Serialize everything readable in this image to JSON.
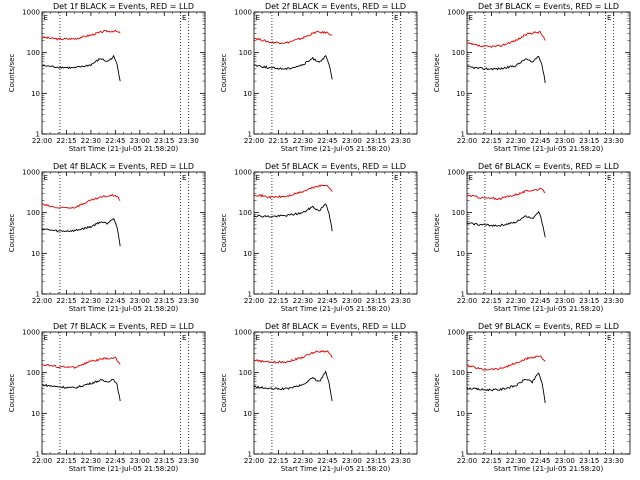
{
  "colors": {
    "events": "#000000",
    "lld": "#e00000",
    "background": "#ffffff"
  },
  "chart_data": [
    {
      "type": "line",
      "title": "Det 1f BLACK = Events, RED = LLD",
      "xlabel": "Start Time (21-Jul-05 21:58:20)",
      "ylabel": "Counts/sec",
      "yscale": "log",
      "ylim": [
        1,
        1000
      ],
      "xlim": [
        "22:00",
        "23:40"
      ],
      "x_ticks": [
        "22:00",
        "22:15",
        "22:30",
        "22:45",
        "23:00",
        "23:15",
        "23:30"
      ],
      "y_ticks": [
        "1",
        "10",
        "100",
        "1000"
      ],
      "vlines": [
        "22:11",
        "23:25",
        "23:30"
      ],
      "corner_mark": "E",
      "series": [
        {
          "color": "red",
          "x": [
            "22:00",
            "22:10",
            "22:20",
            "22:30",
            "22:38",
            "22:45",
            "22:48"
          ],
          "values": [
            240,
            215,
            220,
            270,
            335,
            340,
            300
          ]
        },
        {
          "color": "black",
          "x": [
            "22:00",
            "22:10",
            "22:20",
            "22:30",
            "22:36",
            "22:40",
            "22:44",
            "22:46",
            "22:48"
          ],
          "values": [
            48,
            44,
            42,
            50,
            72,
            60,
            80,
            52,
            20
          ]
        }
      ]
    },
    {
      "type": "line",
      "title": "Det 2f BLACK = Events, RED = LLD",
      "xlabel": "Start Time (21-Jul-05 21:58:20)",
      "ylabel": "Counts/sec",
      "yscale": "log",
      "ylim": [
        1,
        1000
      ],
      "xlim": [
        "22:00",
        "23:40"
      ],
      "x_ticks": [
        "22:00",
        "22:15",
        "22:30",
        "22:45",
        "23:00",
        "23:15",
        "23:30"
      ],
      "y_ticks": [
        "1",
        "10",
        "100",
        "1000"
      ],
      "vlines": [
        "22:11",
        "23:25",
        "23:30"
      ],
      "corner_mark": "E",
      "series": [
        {
          "color": "red",
          "x": [
            "22:00",
            "22:10",
            "22:20",
            "22:30",
            "22:38",
            "22:45",
            "22:48"
          ],
          "values": [
            230,
            180,
            175,
            230,
            320,
            310,
            270
          ]
        },
        {
          "color": "black",
          "x": [
            "22:00",
            "22:10",
            "22:20",
            "22:30",
            "22:36",
            "22:40",
            "22:44",
            "22:46",
            "22:48"
          ],
          "values": [
            50,
            42,
            40,
            50,
            72,
            60,
            80,
            52,
            22
          ]
        }
      ]
    },
    {
      "type": "line",
      "title": "Det 3f BLACK = Events, RED = LLD",
      "xlabel": "Start Time (21-Jul-05 21:58:20)",
      "ylabel": "Counts/sec",
      "yscale": "log",
      "ylim": [
        1,
        1000
      ],
      "xlim": [
        "22:00",
        "23:40"
      ],
      "x_ticks": [
        "22:00",
        "22:15",
        "22:30",
        "22:45",
        "23:00",
        "23:15",
        "23:30"
      ],
      "y_ticks": [
        "1",
        "10",
        "100",
        "1000"
      ],
      "vlines": [
        "22:11",
        "23:25",
        "23:30"
      ],
      "corner_mark": "E",
      "series": [
        {
          "color": "red",
          "x": [
            "22:00",
            "22:10",
            "22:20",
            "22:30",
            "22:38",
            "22:45",
            "22:48"
          ],
          "values": [
            170,
            140,
            145,
            200,
            300,
            320,
            200
          ]
        },
        {
          "color": "black",
          "x": [
            "22:00",
            "22:10",
            "22:20",
            "22:30",
            "22:36",
            "22:40",
            "22:44",
            "22:46",
            "22:48"
          ],
          "values": [
            45,
            40,
            40,
            48,
            70,
            58,
            85,
            50,
            18
          ]
        }
      ]
    },
    {
      "type": "line",
      "title": "Det 4f BLACK = Events, RED = LLD",
      "xlabel": "Start Time (21-Jul-05 21:58:20)",
      "ylabel": "Counts/sec",
      "yscale": "log",
      "ylim": [
        1,
        1000
      ],
      "xlim": [
        "22:00",
        "23:40"
      ],
      "x_ticks": [
        "22:00",
        "22:15",
        "22:30",
        "22:45",
        "23:00",
        "23:15",
        "23:30"
      ],
      "y_ticks": [
        "1",
        "10",
        "100",
        "1000"
      ],
      "vlines": [
        "22:11",
        "23:25",
        "23:30"
      ],
      "corner_mark": "E",
      "series": [
        {
          "color": "red",
          "x": [
            "22:00",
            "22:10",
            "22:20",
            "22:30",
            "22:38",
            "22:45",
            "22:48"
          ],
          "values": [
            160,
            130,
            135,
            200,
            250,
            270,
            200
          ]
        },
        {
          "color": "black",
          "x": [
            "22:00",
            "22:10",
            "22:20",
            "22:30",
            "22:36",
            "22:40",
            "22:44",
            "22:46",
            "22:48"
          ],
          "values": [
            40,
            35,
            36,
            45,
            60,
            55,
            75,
            45,
            15
          ]
        }
      ]
    },
    {
      "type": "line",
      "title": "Det 5f BLACK = Events, RED = LLD",
      "xlabel": "Start Time (21-Jul-05 21:58:20)",
      "ylabel": "Counts/sec",
      "yscale": "log",
      "ylim": [
        1,
        1000
      ],
      "xlim": [
        "22:00",
        "23:40"
      ],
      "x_ticks": [
        "22:00",
        "22:15",
        "22:30",
        "22:45",
        "23:00",
        "23:15",
        "23:30"
      ],
      "y_ticks": [
        "1",
        "10",
        "100",
        "1000"
      ],
      "vlines": [
        "22:11",
        "23:25",
        "23:30"
      ],
      "corner_mark": "E",
      "series": [
        {
          "color": "red",
          "x": [
            "22:00",
            "22:10",
            "22:20",
            "22:30",
            "22:38",
            "22:45",
            "22:48"
          ],
          "values": [
            280,
            240,
            250,
            330,
            440,
            480,
            330
          ]
        },
        {
          "color": "black",
          "x": [
            "22:00",
            "22:10",
            "22:20",
            "22:30",
            "22:36",
            "22:40",
            "22:44",
            "22:46",
            "22:48"
          ],
          "values": [
            85,
            80,
            85,
            100,
            140,
            110,
            170,
            100,
            35
          ]
        }
      ]
    },
    {
      "type": "line",
      "title": "Det 6f BLACK = Events, RED = LLD",
      "xlabel": "Start Time (21-Jul-05 21:58:20)",
      "ylabel": "Counts/sec",
      "yscale": "log",
      "ylim": [
        1,
        1000
      ],
      "xlim": [
        "22:00",
        "23:40"
      ],
      "x_ticks": [
        "22:00",
        "22:15",
        "22:30",
        "22:45",
        "23:00",
        "23:15",
        "23:30"
      ],
      "y_ticks": [
        "1",
        "10",
        "100",
        "1000"
      ],
      "vlines": [
        "22:11",
        "23:25",
        "23:30"
      ],
      "corner_mark": "E",
      "series": [
        {
          "color": "red",
          "x": [
            "22:00",
            "22:10",
            "22:20",
            "22:30",
            "22:38",
            "22:45",
            "22:48"
          ],
          "values": [
            270,
            230,
            220,
            280,
            350,
            380,
            320
          ]
        },
        {
          "color": "black",
          "x": [
            "22:00",
            "22:10",
            "22:20",
            "22:30",
            "22:36",
            "22:40",
            "22:44",
            "22:46",
            "22:48"
          ],
          "values": [
            55,
            50,
            48,
            58,
            85,
            70,
            110,
            60,
            25
          ]
        }
      ]
    },
    {
      "type": "line",
      "title": "Det 7f BLACK = Events, RED = LLD",
      "xlabel": "Start Time (21-Jul-05 21:58:20)",
      "ylabel": "Counts/sec",
      "yscale": "log",
      "ylim": [
        1,
        1000
      ],
      "xlim": [
        "22:00",
        "23:40"
      ],
      "x_ticks": [
        "22:00",
        "22:15",
        "22:30",
        "22:45",
        "23:00",
        "23:15",
        "23:30"
      ],
      "y_ticks": [
        "1",
        "10",
        "100",
        "1000"
      ],
      "vlines": [
        "22:11",
        "23:25",
        "23:30"
      ],
      "corner_mark": "E",
      "series": [
        {
          "color": "red",
          "x": [
            "22:00",
            "22:10",
            "22:20",
            "22:30",
            "22:38",
            "22:45",
            "22:48"
          ],
          "values": [
            160,
            140,
            135,
            190,
            220,
            230,
            160
          ]
        },
        {
          "color": "black",
          "x": [
            "22:00",
            "22:10",
            "22:20",
            "22:30",
            "22:36",
            "22:40",
            "22:44",
            "22:46",
            "22:48"
          ],
          "values": [
            50,
            45,
            42,
            55,
            65,
            60,
            70,
            50,
            20
          ]
        }
      ]
    },
    {
      "type": "line",
      "title": "Det 8f BLACK = Events, RED = LLD",
      "xlabel": "Start Time (21-Jul-05 21:58:20)",
      "ylabel": "Counts/sec",
      "yscale": "log",
      "ylim": [
        1,
        1000
      ],
      "xlim": [
        "22:00",
        "23:40"
      ],
      "x_ticks": [
        "22:00",
        "22:15",
        "22:30",
        "22:45",
        "23:00",
        "23:15",
        "23:30"
      ],
      "y_ticks": [
        "1",
        "10",
        "100",
        "1000"
      ],
      "vlines": [
        "22:11",
        "23:25",
        "23:30"
      ],
      "corner_mark": "E",
      "series": [
        {
          "color": "red",
          "x": [
            "22:00",
            "22:10",
            "22:20",
            "22:30",
            "22:38",
            "22:45",
            "22:48"
          ],
          "values": [
            200,
            180,
            185,
            240,
            330,
            340,
            230
          ]
        },
        {
          "color": "black",
          "x": [
            "22:00",
            "22:10",
            "22:20",
            "22:30",
            "22:36",
            "22:40",
            "22:44",
            "22:46",
            "22:48"
          ],
          "values": [
            45,
            40,
            40,
            50,
            75,
            60,
            110,
            55,
            20
          ]
        }
      ]
    },
    {
      "type": "line",
      "title": "Det 9f BLACK = Events, RED = LLD",
      "xlabel": "Start Time (21-Jul-05 21:58:20)",
      "ylabel": "Counts/sec",
      "yscale": "log",
      "ylim": [
        1,
        1000
      ],
      "xlim": [
        "22:00",
        "23:40"
      ],
      "x_ticks": [
        "22:00",
        "22:15",
        "22:30",
        "22:45",
        "23:00",
        "23:15",
        "23:30"
      ],
      "y_ticks": [
        "1",
        "10",
        "100",
        "1000"
      ],
      "vlines": [
        "22:11",
        "23:25",
        "23:30"
      ],
      "corner_mark": "E",
      "series": [
        {
          "color": "red",
          "x": [
            "22:00",
            "22:10",
            "22:20",
            "22:30",
            "22:38",
            "22:45",
            "22:48"
          ],
          "values": [
            150,
            120,
            125,
            170,
            230,
            260,
            190
          ]
        },
        {
          "color": "black",
          "x": [
            "22:00",
            "22:10",
            "22:20",
            "22:30",
            "22:36",
            "22:40",
            "22:44",
            "22:46",
            "22:48"
          ],
          "values": [
            42,
            38,
            38,
            48,
            70,
            58,
            100,
            55,
            18
          ]
        }
      ]
    }
  ]
}
